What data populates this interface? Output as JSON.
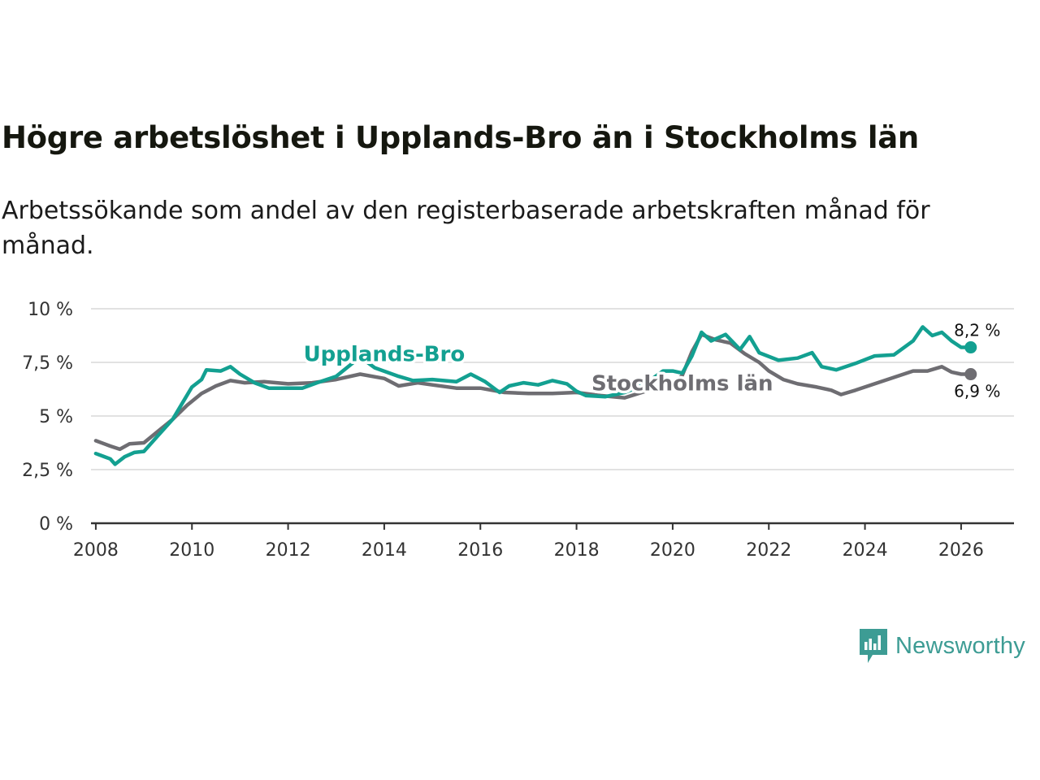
{
  "header": {
    "title": "Högre arbetslöshet i Upplands-Bro än i Stockholms län",
    "subtitle": "Arbetssökande som andel av den registerbaserade arbetskraften månad för månad."
  },
  "brand": {
    "name": "Newsworthy",
    "icon": "newsworthy-logo-icon",
    "color": "#3d9c94"
  },
  "chart_data": {
    "type": "line",
    "title": "Högre arbetslöshet i Upplands-Bro än i Stockholms län",
    "subtitle": "Arbetssökande som andel av den registerbaserade arbetskraften månad för månad.",
    "xlabel": "",
    "ylabel": "",
    "xlim": [
      2007.9,
      2027.1
    ],
    "ylim": [
      0,
      10
    ],
    "grid": true,
    "legend": "inline",
    "x_ticks": [
      2008,
      2010,
      2012,
      2014,
      2016,
      2018,
      2020,
      2022,
      2024,
      2026
    ],
    "x_tick_labels": [
      "2008",
      "2010",
      "2012",
      "2014",
      "2016",
      "2018",
      "2020",
      "2022",
      "2024",
      "2026"
    ],
    "y_ticks": [
      0,
      2.5,
      5,
      7.5,
      10
    ],
    "y_tick_labels": [
      "0 %",
      "2,5 %",
      "5 %",
      "7,5 %",
      "10 %"
    ],
    "series": [
      {
        "name": "Stockholms län",
        "color": "#6e6d72",
        "end_label": "6,9 %",
        "points": [
          [
            2008.0,
            3.85
          ],
          [
            2008.3,
            3.6
          ],
          [
            2008.5,
            3.45
          ],
          [
            2008.7,
            3.7
          ],
          [
            2009.0,
            3.75
          ],
          [
            2009.3,
            4.3
          ],
          [
            2009.6,
            4.85
          ],
          [
            2009.9,
            5.5
          ],
          [
            2010.2,
            6.05
          ],
          [
            2010.5,
            6.4
          ],
          [
            2010.8,
            6.65
          ],
          [
            2011.1,
            6.55
          ],
          [
            2011.5,
            6.6
          ],
          [
            2012.0,
            6.5
          ],
          [
            2012.5,
            6.55
          ],
          [
            2013.0,
            6.7
          ],
          [
            2013.5,
            6.95
          ],
          [
            2014.0,
            6.75
          ],
          [
            2014.3,
            6.4
          ],
          [
            2014.7,
            6.55
          ],
          [
            2015.0,
            6.45
          ],
          [
            2015.5,
            6.3
          ],
          [
            2016.0,
            6.3
          ],
          [
            2016.5,
            6.1
          ],
          [
            2017.0,
            6.05
          ],
          [
            2017.5,
            6.05
          ],
          [
            2018.0,
            6.1
          ],
          [
            2018.5,
            5.95
          ],
          [
            2019.0,
            5.85
          ],
          [
            2019.5,
            6.2
          ],
          [
            2020.0,
            6.45
          ],
          [
            2020.2,
            6.9
          ],
          [
            2020.4,
            8.0
          ],
          [
            2020.6,
            8.8
          ],
          [
            2020.9,
            8.55
          ],
          [
            2021.2,
            8.4
          ],
          [
            2021.5,
            7.9
          ],
          [
            2021.8,
            7.5
          ],
          [
            2022.0,
            7.1
          ],
          [
            2022.3,
            6.7
          ],
          [
            2022.6,
            6.5
          ],
          [
            2023.0,
            6.35
          ],
          [
            2023.3,
            6.2
          ],
          [
            2023.5,
            6.0
          ],
          [
            2023.8,
            6.2
          ],
          [
            2024.2,
            6.5
          ],
          [
            2024.6,
            6.8
          ],
          [
            2025.0,
            7.1
          ],
          [
            2025.3,
            7.1
          ],
          [
            2025.6,
            7.3
          ],
          [
            2025.8,
            7.05
          ],
          [
            2026.0,
            6.95
          ],
          [
            2026.2,
            6.95
          ]
        ]
      },
      {
        "name": "Upplands-Bro",
        "color": "#13a091",
        "end_label": "8,2 %",
        "points": [
          [
            2008.0,
            3.25
          ],
          [
            2008.3,
            3.0
          ],
          [
            2008.4,
            2.75
          ],
          [
            2008.6,
            3.1
          ],
          [
            2008.8,
            3.3
          ],
          [
            2009.0,
            3.35
          ],
          [
            2009.3,
            4.1
          ],
          [
            2009.6,
            4.85
          ],
          [
            2009.8,
            5.6
          ],
          [
            2010.0,
            6.35
          ],
          [
            2010.2,
            6.7
          ],
          [
            2010.3,
            7.15
          ],
          [
            2010.6,
            7.1
          ],
          [
            2010.8,
            7.3
          ],
          [
            2011.0,
            6.95
          ],
          [
            2011.3,
            6.55
          ],
          [
            2011.6,
            6.3
          ],
          [
            2012.0,
            6.3
          ],
          [
            2012.3,
            6.3
          ],
          [
            2012.6,
            6.55
          ],
          [
            2013.0,
            6.85
          ],
          [
            2013.5,
            7.75
          ],
          [
            2013.8,
            7.25
          ],
          [
            2014.3,
            6.85
          ],
          [
            2014.6,
            6.65
          ],
          [
            2015.0,
            6.7
          ],
          [
            2015.5,
            6.6
          ],
          [
            2015.8,
            6.95
          ],
          [
            2016.1,
            6.6
          ],
          [
            2016.4,
            6.1
          ],
          [
            2016.6,
            6.4
          ],
          [
            2016.9,
            6.55
          ],
          [
            2017.2,
            6.45
          ],
          [
            2017.5,
            6.65
          ],
          [
            2017.8,
            6.5
          ],
          [
            2018.0,
            6.15
          ],
          [
            2018.2,
            5.95
          ],
          [
            2018.6,
            5.9
          ],
          [
            2019.0,
            6.1
          ],
          [
            2019.4,
            6.45
          ],
          [
            2019.8,
            7.1
          ],
          [
            2020.0,
            7.1
          ],
          [
            2020.2,
            7.0
          ],
          [
            2020.4,
            7.8
          ],
          [
            2020.6,
            8.9
          ],
          [
            2020.8,
            8.5
          ],
          [
            2021.1,
            8.8
          ],
          [
            2021.4,
            8.1
          ],
          [
            2021.6,
            8.7
          ],
          [
            2021.8,
            7.95
          ],
          [
            2022.2,
            7.6
          ],
          [
            2022.6,
            7.7
          ],
          [
            2022.9,
            7.95
          ],
          [
            2023.1,
            7.3
          ],
          [
            2023.4,
            7.15
          ],
          [
            2023.8,
            7.45
          ],
          [
            2024.2,
            7.8
          ],
          [
            2024.6,
            7.85
          ],
          [
            2025.0,
            8.5
          ],
          [
            2025.2,
            9.15
          ],
          [
            2025.4,
            8.75
          ],
          [
            2025.6,
            8.9
          ],
          [
            2025.8,
            8.5
          ],
          [
            2026.0,
            8.2
          ],
          [
            2026.2,
            8.2
          ]
        ]
      }
    ]
  }
}
